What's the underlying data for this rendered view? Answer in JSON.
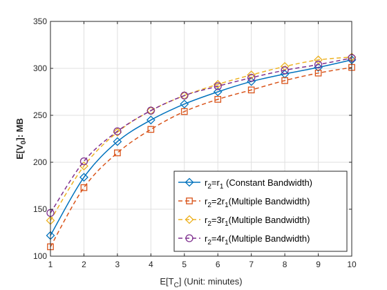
{
  "chart_data": {
    "type": "line",
    "xlabel": {
      "main": "E[T",
      "sub": "C",
      "rest": "] (Unit: minutes)"
    },
    "ylabel": {
      "main": "E[V",
      "sub": "0",
      "rest": "]: MB"
    },
    "xlim": [
      1,
      10
    ],
    "ylim": [
      100,
      350
    ],
    "xticks": [
      1,
      2,
      3,
      4,
      5,
      6,
      7,
      8,
      9,
      10
    ],
    "yticks": [
      100,
      150,
      200,
      250,
      300,
      350
    ],
    "grid": true,
    "legend_position": "bottom-right",
    "x": [
      1,
      2,
      3,
      4,
      5,
      6,
      7,
      8,
      9,
      10
    ],
    "series": [
      {
        "name": "r2=r1 (Constant Bandwidth)",
        "legend": {
          "a": "r",
          "a_sub": "2",
          "b": "=r",
          "b_sub": "1",
          "c": " (Constant Bandwidth)"
        },
        "values": [
          122,
          184,
          222,
          245,
          262,
          275,
          286,
          294,
          301,
          309
        ],
        "color": "#0072BD",
        "dash": "solid",
        "marker": "diamond"
      },
      {
        "name": "r2=2r1(Multiple Bandwidth)",
        "legend": {
          "a": "r",
          "a_sub": "2",
          "b": "=2r",
          "b_sub": "1",
          "c": "(Multiple Bandwidth)"
        },
        "values": [
          110,
          173,
          210,
          235,
          254,
          267,
          277,
          287,
          295,
          301
        ],
        "color": "#D95319",
        "dash": "dashed",
        "marker": "square"
      },
      {
        "name": "r2=3r1(Multiple Bandwidth)",
        "legend": {
          "a": "r",
          "a_sub": "2",
          "b": "=3r",
          "b_sub": "1",
          "c": "(Multiple Bandwidth)"
        },
        "values": [
          138,
          196,
          232,
          255,
          271,
          283,
          293,
          302,
          309,
          312
        ],
        "color": "#EDB120",
        "dash": "dashed",
        "marker": "diamond"
      },
      {
        "name": "r2=4r1(Multiple Bandwidth)",
        "legend": {
          "a": "r",
          "a_sub": "2",
          "b": "=4r",
          "b_sub": "1",
          "c": "(Multiple Bandwidth)"
        },
        "values": [
          146,
          201,
          233,
          255,
          271,
          281,
          290,
          298,
          304,
          311
        ],
        "color": "#7E2F8E",
        "dash": "dashed",
        "marker": "circle"
      }
    ]
  }
}
